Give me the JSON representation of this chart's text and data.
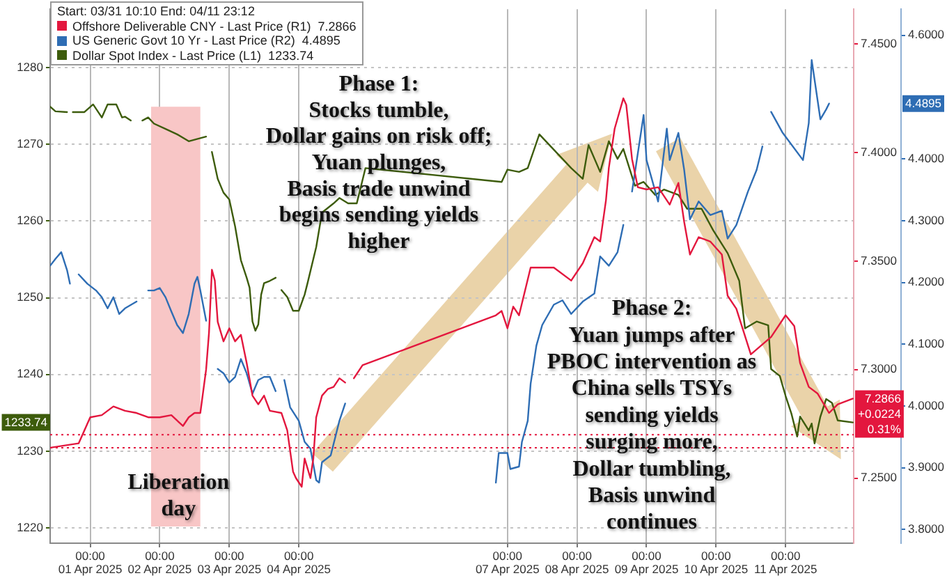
{
  "chart_data": {
    "type": "line",
    "legend_title": "Start: 03/31 10:10 End: 04/11 23:12",
    "legend": "top left",
    "grid": true,
    "xlim": [
      "2025-03-31T10:10",
      "2025-04-11T23:30"
    ],
    "xticks": [
      {
        "value": "2025-04-01T00:00",
        "label": "00:00\n01 Apr 2025"
      },
      {
        "value": "2025-04-02T00:00",
        "label": "00:00\n02 Apr 2025"
      },
      {
        "value": "2025-04-03T00:00",
        "label": "00:00\n03 Apr 2025"
      },
      {
        "value": "2025-04-04T00:00",
        "label": "00:00\n04 Apr 2025"
      },
      {
        "value": "2025-04-07T00:00",
        "label": "00:00\n07 Apr 2025"
      },
      {
        "value": "2025-04-08T00:00",
        "label": "00:00\n08 Apr 2025"
      },
      {
        "value": "2025-04-09T00:00",
        "label": "00:00\n09 Apr 2025"
      },
      {
        "value": "2025-04-10T00:00",
        "label": "00:00\n10 Apr 2025"
      },
      {
        "value": "2025-04-11T00:00",
        "label": "00:00\n11 Apr 2025"
      }
    ],
    "ylim": [
      1218,
      1287.6
    ],
    "yticks": [
      1220,
      1230,
      1240,
      1250,
      1260,
      1270,
      1280
    ],
    "y2lim": [
      7.22,
      7.466
    ],
    "y2ticks": [
      {
        "value": 7.25,
        "label": "7.2500"
      },
      {
        "value": 7.3,
        "label": "7.3000"
      },
      {
        "value": 7.35,
        "label": "7.3500"
      },
      {
        "value": 7.4,
        "label": "7.4000"
      },
      {
        "value": 7.45,
        "label": "7.4500"
      }
    ],
    "y3lim": [
      3.778,
      4.642
    ],
    "y3ticks": [
      {
        "value": 3.8,
        "label": "3.8000"
      },
      {
        "value": 3.9,
        "label": "3.9000"
      },
      {
        "value": 4.0,
        "label": "4.0000"
      },
      {
        "value": 4.1,
        "label": "4.1000"
      },
      {
        "value": 4.2,
        "label": "4.2000"
      },
      {
        "value": 4.3,
        "label": "4.3000"
      },
      {
        "value": 4.4,
        "label": "4.4000"
      },
      {
        "value": 4.6,
        "label": "4.6000"
      }
    ],
    "series": [
      {
        "name": "Offshore Deliverable CNY - Last Price (R1)  7.2866",
        "color": "#e3173e",
        "axis": "y2",
        "x": [
          "2025-03-31T10:10",
          "2025-03-31T20:00",
          "2025-04-01T00:00",
          "2025-04-01T04:00",
          "2025-04-01T08:00",
          "2025-04-01T12:00",
          "2025-04-01T16:00",
          "2025-04-01T20:00",
          "2025-04-02T00:00",
          "2025-04-02T04:00",
          "2025-04-02T08:00",
          "2025-04-02T10:00",
          "2025-04-02T12:00",
          "2025-04-02T14:00",
          "2025-04-02T16:00",
          "2025-04-02T17:00",
          "2025-04-02T18:00",
          "2025-04-02T19:00",
          "2025-04-02T20:00",
          "2025-04-02T22:00",
          "2025-04-03T00:00",
          "2025-04-03T02:00",
          "2025-04-03T04:00",
          "2025-04-03T06:00",
          "2025-04-03T08:00",
          "2025-04-03T10:00",
          "2025-04-03T12:00",
          "2025-04-03T14:00",
          "2025-04-03T18:00",
          "2025-04-03T20:00",
          "2025-04-03T22:00",
          "2025-04-03T23:00",
          "2025-04-04T01:00",
          "2025-04-04T02:00",
          "2025-04-04T04:00",
          "2025-04-04T05:00",
          "2025-04-04T06:00",
          "2025-04-04T08:00",
          "2025-04-04T10:00",
          "2025-04-04T12:00",
          "2025-04-04T14:00",
          "2025-04-04T16:00",
          "2025-04-04T17:00",
          "2025-04-04T19:00",
          "2025-04-04T22:00",
          "2025-04-06T20:00",
          "2025-04-06T22:00",
          "2025-04-07T00:00",
          "2025-04-07T02:00",
          "2025-04-07T04:00",
          "2025-04-07T08:00",
          "2025-04-07T16:00",
          "2025-04-07T22:00",
          "2025-04-08T02:00",
          "2025-04-08T06:00",
          "2025-04-08T08:00",
          "2025-04-08T10:00",
          "2025-04-08T11:00",
          "2025-04-08T13:00",
          "2025-04-08T16:00",
          "2025-04-08T17:00",
          "2025-04-08T19:00",
          "2025-04-08T21:00",
          "2025-04-09T00:00",
          "2025-04-09T04:00",
          "2025-04-09T08:00",
          "2025-04-09T11:00",
          "2025-04-09T13:00",
          "2025-04-09T15:00",
          "2025-04-09T18:00",
          "2025-04-09T22:00",
          "2025-04-10T02:00",
          "2025-04-10T04:00",
          "2025-04-10T07:00",
          "2025-04-10T12:00",
          "2025-04-10T19:00",
          "2025-04-11T00:00",
          "2025-04-11T03:00",
          "2025-04-11T05:00",
          "2025-04-11T08:00",
          "2025-04-11T11:00",
          "2025-04-11T15:00",
          "2025-04-11T18:00",
          "2025-04-11T23:12"
        ],
        "values": [
          7.264,
          7.266,
          7.278,
          7.279,
          7.283,
          7.281,
          7.28,
          7.278,
          7.278,
          7.279,
          7.274,
          7.278,
          7.28,
          7.28,
          7.3,
          7.317,
          7.346,
          7.341,
          7.322,
          7.313,
          7.319,
          7.313,
          7.316,
          7.303,
          7.288,
          7.284,
          7.288,
          7.281,
          7.28,
          7.272,
          7.253,
          7.25,
          7.246,
          7.259,
          7.25,
          7.259,
          7.278,
          7.288,
          7.291,
          7.292,
          7.296,
          7.294,
          null,
          7.296,
          7.302,
          7.325,
          7.327,
          7.319,
          7.329,
          7.325,
          7.347,
          7.347,
          7.341,
          7.349,
          7.361,
          7.359,
          7.378,
          7.393,
          7.411,
          7.425,
          7.422,
          7.397,
          7.384,
          7.383,
          7.384,
          7.376,
          7.386,
          7.368,
          7.353,
          7.361,
          7.359,
          7.353,
          7.334,
          7.328,
          7.307,
          7.315,
          7.325,
          7.32,
          7.303,
          7.292,
          7.289,
          7.28,
          7.284,
          7.2866
        ]
      },
      {
        "name": "US Generic Govt 10 Yr - Last Price (R2)  4.4895",
        "color": "#2e6db4",
        "axis": "y3",
        "x": [
          "2025-03-31T10:10",
          "2025-03-31T12:00",
          "2025-03-31T14:00",
          "2025-03-31T16:00",
          "2025-03-31T17:00",
          "2025-03-31T19:00",
          "2025-03-31T20:00",
          "2025-03-31T23:00",
          "2025-04-01T02:00",
          "2025-04-01T04:00",
          "2025-04-01T06:00",
          "2025-04-01T08:00",
          "2025-04-01T10:00",
          "2025-04-01T12:00",
          "2025-04-01T16:00",
          "2025-04-01T18:00",
          "2025-04-01T20:00",
          "2025-04-01T22:00",
          "2025-04-02T00:00",
          "2025-04-02T02:00",
          "2025-04-02T04:00",
          "2025-04-02T06:00",
          "2025-04-02T08:00",
          "2025-04-02T10:00",
          "2025-04-02T12:00",
          "2025-04-02T13:00",
          "2025-04-02T14:00",
          "2025-04-02T16:00",
          "2025-04-02T18:00",
          "2025-04-02T20:00",
          "2025-04-02T22:00",
          "2025-04-03T00:00",
          "2025-04-03T02:00",
          "2025-04-03T04:00",
          "2025-04-03T06:00",
          "2025-04-03T08:00",
          "2025-04-03T10:00",
          "2025-04-03T12:00",
          "2025-04-03T14:00",
          "2025-04-03T16:00",
          "2025-04-03T17:00",
          "2025-04-03T19:00",
          "2025-04-03T21:00",
          "2025-04-04T00:00",
          "2025-04-04T02:00",
          "2025-04-04T04:00",
          "2025-04-04T06:00",
          "2025-04-04T07:00",
          "2025-04-04T08:00",
          "2025-04-04T11:00",
          "2025-04-04T14:00",
          "2025-04-04T16:00",
          "2025-04-04T19:00",
          "2025-04-06T20:00",
          "2025-04-06T21:00",
          "2025-04-07T00:00",
          "2025-04-07T01:00",
          "2025-04-07T04:00",
          "2025-04-07T05:00",
          "2025-04-07T07:00",
          "2025-04-07T08:00",
          "2025-04-07T10:00",
          "2025-04-07T12:00",
          "2025-04-07T16:00",
          "2025-04-07T19:00",
          "2025-04-07T22:00",
          "2025-04-08T02:00",
          "2025-04-08T06:00",
          "2025-04-08T08:00",
          "2025-04-08T11:00",
          "2025-04-08T14:00",
          "2025-04-08T16:00",
          "2025-04-08T18:00",
          "2025-04-08T19:00",
          "2025-04-08T23:00",
          "2025-04-09T00:00",
          "2025-04-09T04:00",
          "2025-04-09T07:00",
          "2025-04-09T08:00",
          "2025-04-09T11:00",
          "2025-04-09T13:00",
          "2025-04-09T15:00",
          "2025-04-09T18:00",
          "2025-04-09T22:00",
          "2025-04-10T02:00",
          "2025-04-10T04:00",
          "2025-04-10T07:00",
          "2025-04-10T11:00",
          "2025-04-10T14:00",
          "2025-04-10T16:00",
          "2025-04-10T18:00",
          "2025-04-10T19:00",
          "2025-04-10T23:00",
          "2025-04-11T06:00",
          "2025-04-11T08:00",
          "2025-04-11T09:00",
          "2025-04-11T12:00",
          "2025-04-11T14:00",
          "2025-04-11T15:00"
        ],
        "values": [
          4.227,
          4.238,
          4.249,
          4.22,
          4.198,
          null,
          4.213,
          4.198,
          4.187,
          4.176,
          4.158,
          4.176,
          4.149,
          4.158,
          4.169,
          null,
          4.187,
          4.187,
          4.191,
          4.176,
          4.153,
          4.131,
          4.118,
          4.149,
          4.198,
          4.209,
          4.187,
          4.138,
          null,
          4.06,
          4.053,
          4.038,
          4.047,
          4.076,
          4.053,
          4.02,
          4.042,
          4.047,
          4.047,
          4.024,
          null,
          4.042,
          3.998,
          3.976,
          3.942,
          3.931,
          3.88,
          3.876,
          3.909,
          3.92,
          3.976,
          4.004,
          null,
          3.876,
          3.924,
          3.924,
          3.898,
          3.902,
          3.942,
          3.976,
          4.036,
          4.098,
          4.131,
          4.164,
          4.171,
          4.149,
          4.169,
          4.182,
          4.242,
          4.227,
          4.249,
          4.293,
          null,
          4.347,
          4.471,
          4.398,
          4.331,
          4.449,
          4.398,
          4.442,
          4.382,
          4.302,
          4.331,
          4.309,
          4.316,
          4.271,
          4.293,
          4.347,
          4.382,
          4.42,
          null,
          4.476,
          4.442,
          4.398,
          4.458,
          4.56,
          4.464,
          4.48,
          4.4895
        ]
      },
      {
        "name": "Dollar Spot Index - Last Price (L1)  1233.74",
        "color": "#3d5c0c",
        "axis": "y",
        "x": [
          "2025-03-31T10:10",
          "2025-03-31T12:00",
          "2025-03-31T16:00",
          "2025-03-31T17:00",
          "2025-03-31T18:00",
          "2025-03-31T22:00",
          "2025-04-01T01:00",
          "2025-04-01T04:00",
          "2025-04-01T06:00",
          "2025-04-01T09:00",
          "2025-04-01T11:00",
          "2025-04-01T12:00",
          "2025-04-01T14:00",
          "2025-04-01T15:00",
          "2025-04-01T18:00",
          "2025-04-01T20:00",
          "2025-04-01T22:00",
          "2025-04-02T02:00",
          "2025-04-02T06:00",
          "2025-04-02T10:00",
          "2025-04-02T14:00",
          "2025-04-02T16:00",
          "2025-04-02T17:00",
          "2025-04-02T18:00",
          "2025-04-02T20:00",
          "2025-04-02T22:00",
          "2025-04-03T00:00",
          "2025-04-03T02:00",
          "2025-04-03T04:00",
          "2025-04-03T06:00",
          "2025-04-03T07:00",
          "2025-04-03T08:00",
          "2025-04-03T09:00",
          "2025-04-03T10:00",
          "2025-04-03T11:00",
          "2025-04-03T12:00",
          "2025-04-03T14:00",
          "2025-04-03T16:00",
          "2025-04-03T17:00",
          "2025-04-03T18:00",
          "2025-04-03T20:00",
          "2025-04-03T22:00",
          "2025-04-04T00:00",
          "2025-04-04T02:00",
          "2025-04-04T03:00",
          "2025-04-04T06:00",
          "2025-04-04T08:00",
          "2025-04-04T12:00",
          "2025-04-04T14:00",
          "2025-04-04T17:00",
          "2025-04-04T20:00",
          "2025-04-04T23:00",
          "2025-04-06T22:00",
          "2025-04-07T00:00",
          "2025-04-07T04:00",
          "2025-04-07T07:00",
          "2025-04-07T11:00",
          "2025-04-07T22:00",
          "2025-04-08T02:00",
          "2025-04-08T04:00",
          "2025-04-08T08:00",
          "2025-04-08T11:00",
          "2025-04-08T14:00",
          "2025-04-08T16:00",
          "2025-04-08T20:00",
          "2025-04-08T23:00",
          "2025-04-09T03:00",
          "2025-04-09T06:00",
          "2025-04-09T11:00",
          "2025-04-09T14:00",
          "2025-04-09T19:00",
          "2025-04-09T23:00",
          "2025-04-10T04:00",
          "2025-04-10T08:00",
          "2025-04-10T10:00",
          "2025-04-10T14:00",
          "2025-04-10T18:00",
          "2025-04-10T19:00",
          "2025-04-10T22:00",
          "2025-04-11T00:00",
          "2025-04-11T02:00",
          "2025-04-11T04:00",
          "2025-04-11T05:00",
          "2025-04-11T08:00",
          "2025-04-11T09:00",
          "2025-04-11T10:00",
          "2025-04-11T12:00",
          "2025-04-11T14:00",
          "2025-04-11T16:00",
          "2025-04-11T18:00",
          "2025-04-11T23:12"
        ],
        "values": [
          1274.9,
          1274.3,
          1274.2,
          null,
          1274.2,
          1274.2,
          1275.2,
          1273.5,
          1275.2,
          1275.2,
          1273.5,
          1273.6,
          1273.1,
          null,
          1273.1,
          1273.5,
          1272.7,
          1272.0,
          1271.3,
          1270.4,
          1270.8,
          1271.0,
          null,
          1269.0,
          1265.5,
          1263.7,
          1262.8,
          1259.3,
          1254.9,
          1252.6,
          1251.3,
          1246.9,
          1245.7,
          1246.5,
          1250.4,
          1251.9,
          1252.2,
          1252.6,
          null,
          1251.0,
          1250.1,
          1248.3,
          1248.3,
          1250.4,
          1251.9,
          1256.6,
          1261.1,
          1262.3,
          1263.0,
          1262.3,
          1262.3,
          1266.9,
          1265.1,
          1266.7,
          1266.4,
          1266.9,
          1271.3,
          1266.9,
          1265.5,
          1269.9,
          1266.4,
          1270.4,
          1268.1,
          1269.4,
          1264.6,
          1265.1,
          1263.4,
          1264.1,
          1263.4,
          1261.6,
          1261.6,
          1258.8,
          1255.8,
          1252.2,
          1246.0,
          1246.9,
          1246.4,
          1240.7,
          1239.8,
          1237.2,
          1234.9,
          1231.9,
          1234.5,
          1232.7,
          1233.6,
          1231.0,
          1234.5,
          1236.8,
          1236.3,
          1234.0,
          1233.74
        ]
      }
    ],
    "bands": [
      {
        "axis": "x",
        "from": "2025-04-01T21:00",
        "to": "2025-04-02T14:00",
        "label": "Liberation day",
        "color": "#f8c6c6"
      }
    ],
    "ref_lines": [
      {
        "axis": "y2",
        "value": 7.27,
        "color": "#e3173e",
        "line_style": "dotted"
      },
      {
        "axis": "y2",
        "value": 7.264,
        "color": "#e3173e",
        "line_style": "dotted"
      }
    ],
    "annotations": [
      "Phase 1:\nStocks tumble,\nDollar gains on risk off;\nYuan plunges,\nBasis trade unwind\nbegins sending yields\nhigher",
      "Phase 2:\nYuan jumps after\nPBOC intervention as\nChina sells TSYs\nsending yields\nsurging more,\nDollar tumbling,\nBasis unwind\ncontinues",
      "7.2866\n+0.0224\n0.31%",
      "4.4895",
      "1233.74"
    ]
  }
}
